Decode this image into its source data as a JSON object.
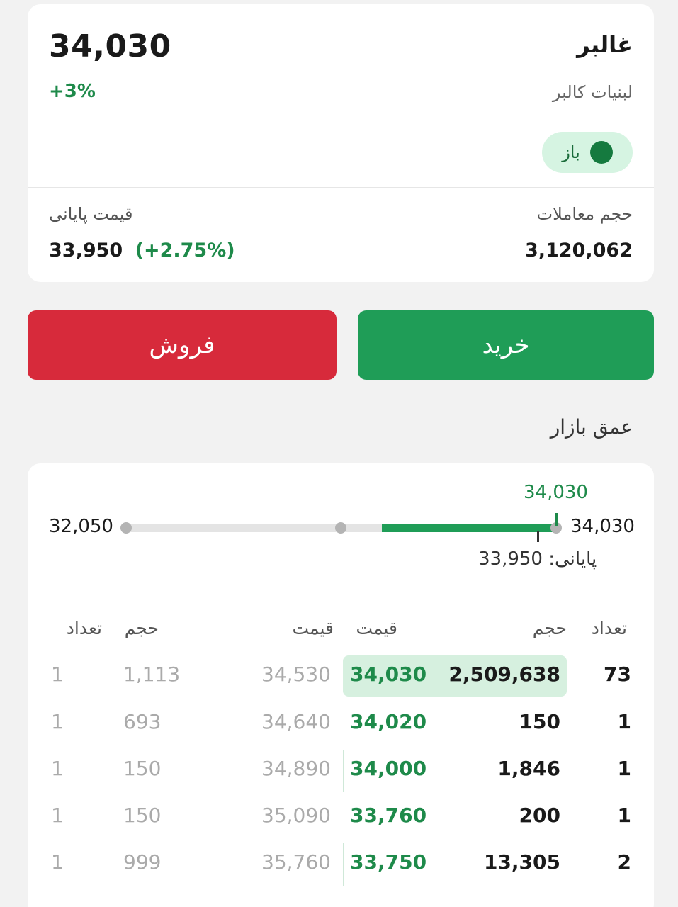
{
  "stock": {
    "price": "34,030",
    "change_pct": "+3%",
    "symbol": "غالبر",
    "company": "لبنیات کالبر",
    "status": "باز",
    "volume_label": "حجم معاملات",
    "volume_value": "3,120,062",
    "close_label": "قیمت پایانی",
    "close_value": "33,950",
    "close_change": "(+2.75%)"
  },
  "actions": {
    "buy_label": "خرید",
    "sell_label": "فروش"
  },
  "depth": {
    "title": "عمق بازار",
    "range": {
      "top_value": "34,030",
      "min": "32,050",
      "max": "34,030",
      "close_text": "پایانی: 33,950"
    },
    "headers": {
      "bid_count": "تعداد",
      "bid_volume": "حجم",
      "bid_price": "قیمت",
      "ask_price": "قیمت",
      "ask_volume": "حجم",
      "ask_count": "تعداد"
    },
    "rows": [
      {
        "bid_count": "73",
        "bid_volume": "2,509,638",
        "bid_price": "34,030",
        "ask_price": "34,530",
        "ask_volume": "1,113",
        "ask_count": "1"
      },
      {
        "bid_count": "1",
        "bid_volume": "150",
        "bid_price": "34,020",
        "ask_price": "34,640",
        "ask_volume": "693",
        "ask_count": "1"
      },
      {
        "bid_count": "1",
        "bid_volume": "1,846",
        "bid_price": "34,000",
        "ask_price": "34,890",
        "ask_volume": "150",
        "ask_count": "1"
      },
      {
        "bid_count": "1",
        "bid_volume": "200",
        "bid_price": "33,760",
        "ask_price": "35,090",
        "ask_volume": "150",
        "ask_count": "1"
      },
      {
        "bid_count": "2",
        "bid_volume": "13,305",
        "bid_price": "33,750",
        "ask_price": "35,760",
        "ask_volume": "999",
        "ask_count": "1"
      }
    ]
  },
  "colors": {
    "buy": "#1f9d57",
    "sell": "#d72a3b",
    "positive": "#1e8a4a",
    "status_bg": "#d6f4e2"
  }
}
